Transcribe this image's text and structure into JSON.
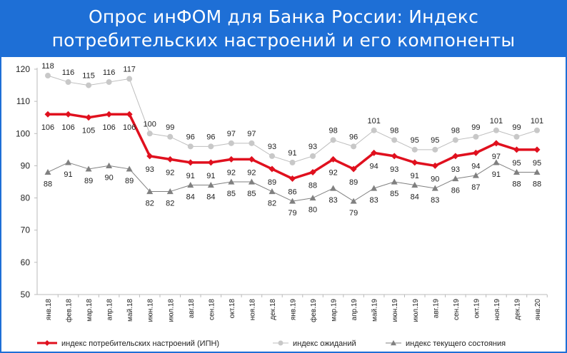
{
  "header": {
    "line1": "Опрос инФОМ для Банка России: Индекс",
    "line2": "потребительских настроений и его компоненты"
  },
  "chart_data": {
    "type": "line",
    "title": "Опрос инФОМ для Банка России: Индекс потребительских настроений и его компоненты",
    "x": [
      "янв.18",
      "фев.18",
      "мар.18",
      "апр.18",
      "май.18",
      "июн.18",
      "июл.18",
      "авг.18",
      "сен.18",
      "окт.18",
      "ноя.18",
      "дек.18",
      "янв.19",
      "фев.19",
      "мар.19",
      "апр.19",
      "май.19",
      "июн.19",
      "июл.19",
      "авг.19",
      "сен.19",
      "окт.19",
      "ноя.19",
      "дек.19",
      "янв.20"
    ],
    "ylim": [
      50,
      120
    ],
    "yticks": [
      50,
      60,
      70,
      80,
      90,
      100,
      110,
      120
    ],
    "grid": false,
    "legend_position": "bottom",
    "series": [
      {
        "name": "индекс потребительских настроений (ИПН)",
        "color": "#e0101e",
        "marker": "diamond",
        "values": [
          106,
          106,
          105,
          106,
          106,
          93,
          92,
          91,
          91,
          92,
          92,
          89,
          86,
          88,
          92,
          89,
          94,
          93,
          91,
          90,
          93,
          94,
          97,
          95,
          95
        ]
      },
      {
        "name": "индекс ожиданий",
        "color": "#bdbdbd",
        "marker": "circle",
        "values": [
          118,
          116,
          115,
          116,
          117,
          100,
          99,
          96,
          96,
          97,
          97,
          93,
          91,
          93,
          98,
          96,
          101,
          98,
          95,
          95,
          98,
          99,
          101,
          99,
          101
        ]
      },
      {
        "name": "индекс текущего состояния",
        "color": "#808080",
        "marker": "triangle",
        "values": [
          88,
          91,
          89,
          90,
          89,
          82,
          82,
          84,
          84,
          85,
          85,
          82,
          79,
          80,
          83,
          79,
          83,
          85,
          84,
          83,
          86,
          87,
          91,
          88,
          88
        ]
      }
    ]
  }
}
